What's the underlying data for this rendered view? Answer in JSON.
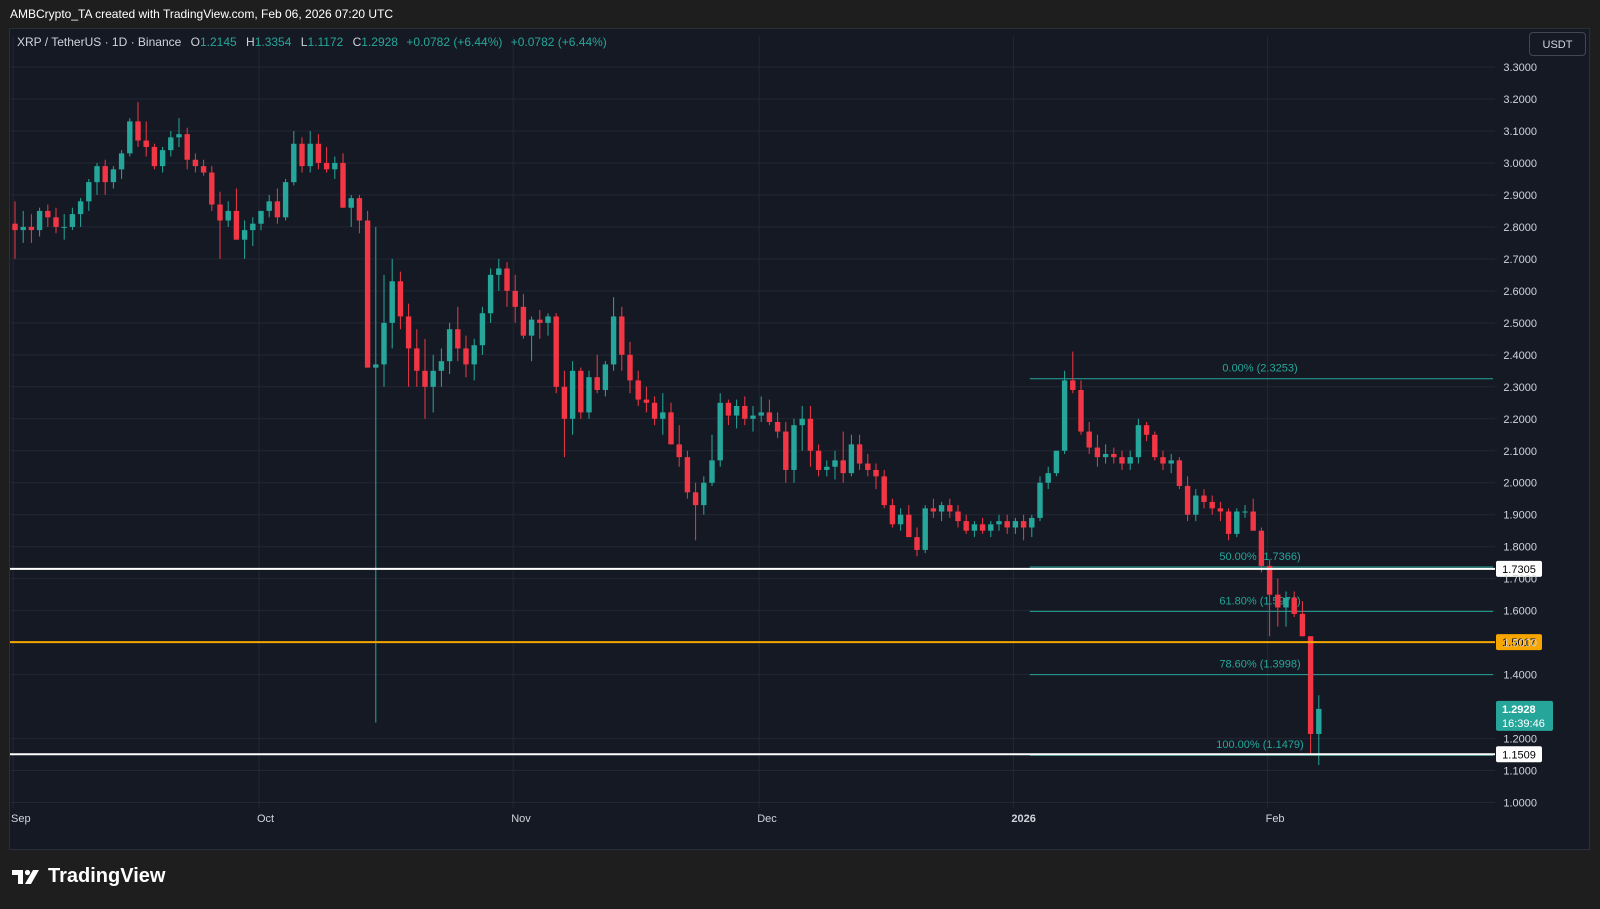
{
  "caption": "AMBCrypto_TA created with TradingView.com, Feb 06, 2026 07:20 UTC",
  "legend": {
    "symbol": "XRP / TetherUS · 1D · Binance",
    "open_label": "O",
    "open": "1.2145",
    "high_label": "H",
    "high": "1.3354",
    "low_label": "L",
    "low": "1.1172",
    "close_label": "C",
    "close": "1.2928",
    "change1": "+0.0782 (+6.44%)",
    "change2": "+0.0782 (+6.44%)"
  },
  "currency_button": "USDT",
  "logo_text": "TradingView",
  "colors": {
    "up": "#26a69a",
    "down": "#f23645",
    "background": "#151924",
    "grid": "#232733",
    "fib": "#26a69a",
    "orange": "#f7a600",
    "white_line": "#ffffff"
  },
  "chart_data": {
    "type": "candlestick",
    "title": "XRP / TetherUS · 1D · Binance",
    "ylim": [
      0.97,
      3.4
    ],
    "y_ticks": [
      "3.3000",
      "3.2000",
      "3.1000",
      "3.0000",
      "2.9000",
      "2.8000",
      "2.7000",
      "2.6000",
      "2.5000",
      "2.4000",
      "2.3000",
      "2.2000",
      "2.1000",
      "2.0000",
      "1.9000",
      "1.8000",
      "1.7000",
      "1.6000",
      "1.5000",
      "1.4000",
      "1.2000",
      "1.1000",
      "1.0000"
    ],
    "x_labels": [
      {
        "label": "Sep",
        "index": 0
      },
      {
        "label": "Oct",
        "index": 30
      },
      {
        "label": "Nov",
        "index": 61
      },
      {
        "label": "Dec",
        "index": 91
      },
      {
        "label": "2026",
        "index": 122
      },
      {
        "label": "Feb",
        "index": 153
      }
    ],
    "candles_ohlc": [
      [
        2.81,
        2.88,
        2.7,
        2.79
      ],
      [
        2.79,
        2.85,
        2.75,
        2.8
      ],
      [
        2.8,
        2.84,
        2.75,
        2.79
      ],
      [
        2.79,
        2.86,
        2.77,
        2.85
      ],
      [
        2.85,
        2.87,
        2.8,
        2.83
      ],
      [
        2.83,
        2.86,
        2.78,
        2.8
      ],
      [
        2.8,
        2.84,
        2.76,
        2.8
      ],
      [
        2.8,
        2.86,
        2.79,
        2.84
      ],
      [
        2.84,
        2.89,
        2.8,
        2.88
      ],
      [
        2.88,
        2.95,
        2.85,
        2.94
      ],
      [
        2.94,
        3.0,
        2.9,
        2.99
      ],
      [
        2.99,
        3.01,
        2.9,
        2.94
      ],
      [
        2.94,
        2.99,
        2.92,
        2.98
      ],
      [
        2.98,
        3.04,
        2.95,
        3.03
      ],
      [
        3.03,
        3.14,
        3.02,
        3.13
      ],
      [
        3.13,
        3.19,
        3.05,
        3.07
      ],
      [
        3.07,
        3.13,
        3.02,
        3.05
      ],
      [
        3.05,
        3.06,
        2.98,
        2.99
      ],
      [
        2.99,
        3.05,
        2.97,
        3.04
      ],
      [
        3.04,
        3.1,
        3.02,
        3.08
      ],
      [
        3.08,
        3.14,
        3.05,
        3.09
      ],
      [
        3.09,
        3.11,
        2.98,
        3.01
      ],
      [
        3.01,
        3.03,
        2.97,
        2.99
      ],
      [
        2.99,
        3.01,
        2.96,
        2.97
      ],
      [
        2.97,
        2.99,
        2.85,
        2.87
      ],
      [
        2.87,
        2.91,
        2.7,
        2.82
      ],
      [
        2.82,
        2.88,
        2.8,
        2.85
      ],
      [
        2.85,
        2.92,
        2.76,
        2.76
      ],
      [
        2.76,
        2.82,
        2.7,
        2.79
      ],
      [
        2.79,
        2.83,
        2.74,
        2.81
      ],
      [
        2.81,
        2.85,
        2.79,
        2.85
      ],
      [
        2.85,
        2.9,
        2.83,
        2.88
      ],
      [
        2.88,
        2.92,
        2.81,
        2.83
      ],
      [
        2.83,
        2.95,
        2.82,
        2.94
      ],
      [
        2.94,
        3.1,
        2.93,
        3.06
      ],
      [
        3.06,
        3.08,
        2.97,
        2.99
      ],
      [
        2.99,
        3.1,
        2.97,
        3.06
      ],
      [
        3.06,
        3.09,
        2.98,
        3.0
      ],
      [
        3.0,
        3.05,
        2.97,
        2.98
      ],
      [
        2.98,
        3.02,
        2.95,
        3.0
      ],
      [
        3.0,
        3.03,
        2.86,
        2.86
      ],
      [
        2.86,
        2.9,
        2.8,
        2.89
      ],
      [
        2.89,
        2.9,
        2.78,
        2.82
      ],
      [
        2.82,
        2.85,
        2.36,
        2.36
      ],
      [
        2.36,
        2.8,
        1.25,
        2.37
      ],
      [
        2.37,
        2.65,
        2.3,
        2.5
      ],
      [
        2.5,
        2.7,
        2.42,
        2.63
      ],
      [
        2.63,
        2.66,
        2.48,
        2.52
      ],
      [
        2.52,
        2.56,
        2.3,
        2.42
      ],
      [
        2.42,
        2.48,
        2.3,
        2.35
      ],
      [
        2.35,
        2.45,
        2.2,
        2.3
      ],
      [
        2.3,
        2.4,
        2.22,
        2.35
      ],
      [
        2.35,
        2.42,
        2.3,
        2.38
      ],
      [
        2.38,
        2.5,
        2.34,
        2.48
      ],
      [
        2.48,
        2.55,
        2.38,
        2.42
      ],
      [
        2.42,
        2.46,
        2.33,
        2.37
      ],
      [
        2.37,
        2.45,
        2.32,
        2.43
      ],
      [
        2.43,
        2.55,
        2.4,
        2.53
      ],
      [
        2.53,
        2.67,
        2.5,
        2.65
      ],
      [
        2.65,
        2.7,
        2.6,
        2.67
      ],
      [
        2.67,
        2.69,
        2.55,
        2.6
      ],
      [
        2.6,
        2.65,
        2.5,
        2.55
      ],
      [
        2.55,
        2.59,
        2.45,
        2.46
      ],
      [
        2.46,
        2.52,
        2.38,
        2.51
      ],
      [
        2.51,
        2.54,
        2.45,
        2.5
      ],
      [
        2.5,
        2.53,
        2.46,
        2.52
      ],
      [
        2.52,
        2.53,
        2.28,
        2.3
      ],
      [
        2.3,
        2.35,
        2.08,
        2.2
      ],
      [
        2.2,
        2.38,
        2.15,
        2.35
      ],
      [
        2.35,
        2.36,
        2.2,
        2.22
      ],
      [
        2.22,
        2.35,
        2.2,
        2.33
      ],
      [
        2.33,
        2.4,
        2.28,
        2.29
      ],
      [
        2.29,
        2.38,
        2.27,
        2.37
      ],
      [
        2.37,
        2.58,
        2.35,
        2.52
      ],
      [
        2.52,
        2.55,
        2.35,
        2.4
      ],
      [
        2.4,
        2.44,
        2.28,
        2.32
      ],
      [
        2.32,
        2.35,
        2.24,
        2.26
      ],
      [
        2.26,
        2.3,
        2.22,
        2.25
      ],
      [
        2.25,
        2.27,
        2.18,
        2.2
      ],
      [
        2.2,
        2.28,
        2.15,
        2.22
      ],
      [
        2.22,
        2.25,
        2.12,
        2.12
      ],
      [
        2.12,
        2.18,
        2.05,
        2.08
      ],
      [
        2.08,
        2.1,
        1.95,
        1.97
      ],
      [
        1.97,
        2.0,
        1.82,
        1.93
      ],
      [
        1.93,
        2.02,
        1.9,
        2.0
      ],
      [
        2.0,
        2.15,
        1.99,
        2.07
      ],
      [
        2.07,
        2.28,
        2.05,
        2.25
      ],
      [
        2.25,
        2.26,
        2.18,
        2.21
      ],
      [
        2.21,
        2.26,
        2.17,
        2.24
      ],
      [
        2.24,
        2.27,
        2.18,
        2.2
      ],
      [
        2.2,
        2.24,
        2.16,
        2.21
      ],
      [
        2.21,
        2.27,
        2.19,
        2.22
      ],
      [
        2.22,
        2.26,
        2.18,
        2.19
      ],
      [
        2.19,
        2.22,
        2.14,
        2.16
      ],
      [
        2.16,
        2.19,
        2.0,
        2.04
      ],
      [
        2.04,
        2.2,
        2.0,
        2.18
      ],
      [
        2.18,
        2.24,
        2.1,
        2.2
      ],
      [
        2.2,
        2.24,
        2.05,
        2.1
      ],
      [
        2.1,
        2.12,
        2.02,
        2.04
      ],
      [
        2.04,
        2.07,
        2.02,
        2.05
      ],
      [
        2.05,
        2.1,
        2.01,
        2.07
      ],
      [
        2.07,
        2.16,
        2.0,
        2.03
      ],
      [
        2.03,
        2.15,
        2.02,
        2.12
      ],
      [
        2.12,
        2.15,
        2.04,
        2.06
      ],
      [
        2.06,
        2.09,
        2.02,
        2.04
      ],
      [
        2.04,
        2.06,
        1.98,
        2.02
      ],
      [
        2.02,
        2.04,
        1.92,
        1.93
      ],
      [
        1.93,
        1.95,
        1.86,
        1.87
      ],
      [
        1.87,
        1.92,
        1.85,
        1.9
      ],
      [
        1.9,
        1.93,
        1.83,
        1.83
      ],
      [
        1.83,
        1.86,
        1.77,
        1.79
      ],
      [
        1.79,
        1.93,
        1.78,
        1.92
      ],
      [
        1.92,
        1.95,
        1.89,
        1.91
      ],
      [
        1.91,
        1.94,
        1.88,
        1.93
      ],
      [
        1.93,
        1.95,
        1.89,
        1.91
      ],
      [
        1.91,
        1.93,
        1.86,
        1.88
      ],
      [
        1.88,
        1.9,
        1.84,
        1.85
      ],
      [
        1.85,
        1.88,
        1.83,
        1.87
      ],
      [
        1.87,
        1.89,
        1.84,
        1.85
      ],
      [
        1.85,
        1.88,
        1.83,
        1.87
      ],
      [
        1.87,
        1.9,
        1.85,
        1.88
      ],
      [
        1.88,
        1.9,
        1.84,
        1.86
      ],
      [
        1.86,
        1.89,
        1.84,
        1.88
      ],
      [
        1.88,
        1.9,
        1.82,
        1.86
      ],
      [
        1.86,
        1.9,
        1.83,
        1.89
      ],
      [
        1.89,
        2.02,
        1.88,
        2.0
      ],
      [
        2.0,
        2.05,
        1.98,
        2.03
      ],
      [
        2.03,
        2.1,
        2.02,
        2.1
      ],
      [
        2.1,
        2.35,
        2.09,
        2.32
      ],
      [
        2.32,
        2.41,
        2.28,
        2.29
      ],
      [
        2.29,
        2.32,
        2.15,
        2.16
      ],
      [
        2.16,
        2.19,
        2.09,
        2.11
      ],
      [
        2.11,
        2.15,
        2.05,
        2.08
      ],
      [
        2.08,
        2.12,
        2.06,
        2.09
      ],
      [
        2.09,
        2.11,
        2.06,
        2.08
      ],
      [
        2.08,
        2.1,
        2.04,
        2.06
      ],
      [
        2.06,
        2.1,
        2.04,
        2.08
      ],
      [
        2.08,
        2.2,
        2.06,
        2.18
      ],
      [
        2.18,
        2.19,
        2.13,
        2.15
      ],
      [
        2.15,
        2.16,
        2.07,
        2.08
      ],
      [
        2.08,
        2.1,
        2.04,
        2.06
      ],
      [
        2.06,
        2.09,
        2.03,
        2.07
      ],
      [
        2.07,
        2.08,
        1.98,
        1.99
      ],
      [
        1.99,
        2.02,
        1.88,
        1.9
      ],
      [
        1.9,
        1.98,
        1.88,
        1.96
      ],
      [
        1.96,
        1.98,
        1.92,
        1.94
      ],
      [
        1.94,
        1.96,
        1.9,
        1.92
      ],
      [
        1.92,
        1.94,
        1.88,
        1.91
      ],
      [
        1.91,
        1.92,
        1.82,
        1.84
      ],
      [
        1.84,
        1.92,
        1.83,
        1.91
      ],
      [
        1.91,
        1.93,
        1.89,
        1.91
      ],
      [
        1.91,
        1.95,
        1.85,
        1.85
      ],
      [
        1.85,
        1.86,
        1.72,
        1.74
      ],
      [
        1.74,
        1.76,
        1.52,
        1.65
      ],
      [
        1.65,
        1.7,
        1.55,
        1.61
      ],
      [
        1.61,
        1.66,
        1.55,
        1.64
      ],
      [
        1.64,
        1.66,
        1.58,
        1.59
      ],
      [
        1.59,
        1.63,
        1.52,
        1.52
      ],
      [
        1.52,
        1.52,
        1.15,
        1.2145
      ],
      [
        1.2145,
        1.3354,
        1.1172,
        1.2928
      ]
    ],
    "horizontal_levels": [
      {
        "price": 1.7305,
        "label": "1.7305",
        "color": "white"
      },
      {
        "price": 1.5017,
        "label": "1.5017",
        "color": "orange"
      },
      {
        "price": 1.1509,
        "label": "1.1509",
        "color": "white"
      }
    ],
    "fibonacci": [
      {
        "ratio": 0.0,
        "price": 2.3253,
        "label": "0.00% (2.3253)"
      },
      {
        "ratio": 0.5,
        "price": 1.7366,
        "label": "50.00% (1.7366)"
      },
      {
        "ratio": 0.618,
        "price": 1.5976,
        "label": "61.80% (1.5976)"
      },
      {
        "ratio": 0.786,
        "price": 1.3998,
        "label": "78.60% (1.3998)"
      },
      {
        "ratio": 1.0,
        "price": 1.1479,
        "label": "100.00% (1.1479)"
      }
    ],
    "current_price": {
      "price": 1.2928,
      "label": "1.2928",
      "countdown": "16:39:46"
    }
  }
}
